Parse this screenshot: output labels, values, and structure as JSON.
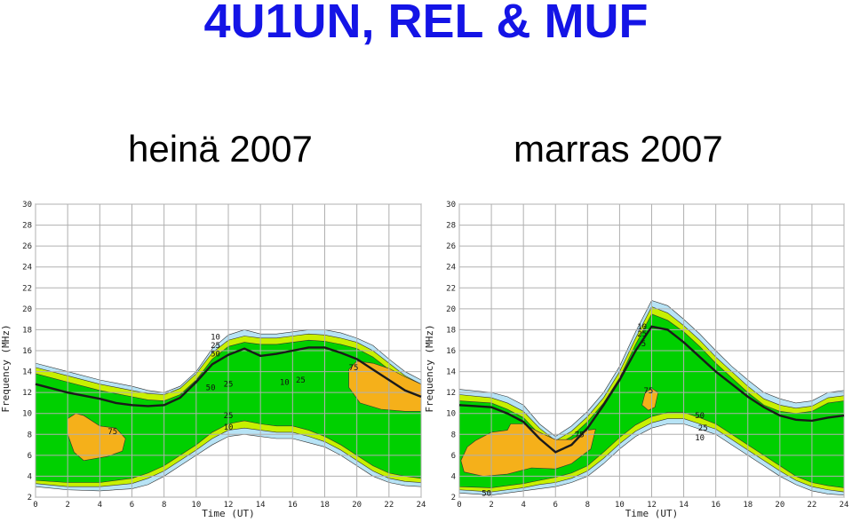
{
  "title": "4U1UN, REL & MUF",
  "subtitles": [
    "heinä 2007",
    "marras 2007"
  ],
  "colors": {
    "band_10": "#b7e3f5",
    "band_25": "#c8f000",
    "band_50": "#00d000",
    "band_75": "#f5b01a",
    "muf_line": "#1a1a1a",
    "grid": "#b0b0b0"
  },
  "chart_data": [
    {
      "type": "area",
      "title": "heinä 2007",
      "xlabel": "Time (UT)",
      "ylabel": "Frequency (MHz)",
      "xlim": [
        0,
        24
      ],
      "ylim": [
        2,
        30
      ],
      "x_ticks": [
        0,
        2,
        4,
        6,
        8,
        10,
        12,
        14,
        16,
        18,
        20,
        22,
        24
      ],
      "y_ticks": [
        2,
        4,
        6,
        8,
        10,
        12,
        14,
        16,
        18,
        20,
        22,
        24,
        26,
        28,
        30
      ],
      "grid": true,
      "contour_levels": [
        10,
        25,
        50,
        75
      ],
      "contour_labels": [
        {
          "text": "10",
          "x": 11.2,
          "y": 17.3
        },
        {
          "text": "25",
          "x": 11.2,
          "y": 16.5
        },
        {
          "text": "50",
          "x": 11.2,
          "y": 15.7
        },
        {
          "text": "50",
          "x": 10.9,
          "y": 12.5
        },
        {
          "text": "25",
          "x": 12.0,
          "y": 12.8
        },
        {
          "text": "10",
          "x": 15.5,
          "y": 13.0
        },
        {
          "text": "25",
          "x": 16.5,
          "y": 13.2
        },
        {
          "text": "75",
          "x": 19.8,
          "y": 14.4
        },
        {
          "text": "25",
          "x": 12.0,
          "y": 9.8
        },
        {
          "text": "10",
          "x": 12.0,
          "y": 8.7
        },
        {
          "text": "75",
          "x": 4.8,
          "y": 8.3
        }
      ],
      "series": [
        {
          "name": "10",
          "x": [
            0,
            2,
            4,
            6,
            7,
            8,
            9,
            10,
            11,
            12,
            13,
            14,
            15,
            16,
            17,
            18,
            19,
            20,
            21,
            22,
            23,
            24
          ],
          "upper": [
            14.8,
            14.0,
            13.2,
            12.6,
            12.2,
            12.0,
            12.6,
            14.0,
            16.2,
            17.5,
            18.0,
            17.6,
            17.6,
            17.8,
            18.0,
            18.0,
            17.7,
            17.2,
            16.5,
            15.2,
            14.0,
            13.2
          ],
          "lower": [
            3.0,
            2.7,
            2.6,
            2.8,
            3.2,
            4.0,
            5.0,
            6.0,
            7.0,
            7.8,
            8.0,
            7.8,
            7.6,
            7.6,
            7.2,
            6.8,
            6.0,
            5.0,
            4.0,
            3.4,
            3.1,
            3.0
          ]
        },
        {
          "name": "25",
          "x": [
            0,
            2,
            4,
            6,
            7,
            8,
            9,
            10,
            11,
            12,
            13,
            14,
            15,
            16,
            17,
            18,
            19,
            20,
            21,
            22,
            23,
            24
          ],
          "upper": [
            14.4,
            13.6,
            12.8,
            12.2,
            11.9,
            11.8,
            12.4,
            13.8,
            15.8,
            17.0,
            17.4,
            17.2,
            17.2,
            17.4,
            17.6,
            17.5,
            17.2,
            16.8,
            16.0,
            14.8,
            13.6,
            12.8
          ],
          "lower": [
            3.3,
            3.0,
            3.0,
            3.3,
            3.8,
            4.5,
            5.5,
            6.5,
            7.6,
            8.4,
            8.6,
            8.4,
            8.2,
            8.2,
            7.8,
            7.3,
            6.5,
            5.5,
            4.5,
            3.8,
            3.5,
            3.4
          ]
        },
        {
          "name": "50",
          "x": [
            0,
            2,
            4,
            6,
            7,
            8,
            9,
            10,
            11,
            12,
            13,
            14,
            15,
            16,
            17,
            18,
            19,
            20,
            21,
            22,
            23,
            24
          ],
          "upper": [
            13.8,
            13.0,
            12.2,
            11.6,
            11.3,
            11.2,
            11.8,
            13.2,
            15.2,
            16.4,
            16.8,
            16.6,
            16.6,
            16.8,
            17.0,
            16.9,
            16.6,
            16.2,
            15.4,
            14.2,
            13.0,
            12.2
          ],
          "lower": [
            3.6,
            3.4,
            3.4,
            3.8,
            4.3,
            5.0,
            6.0,
            7.0,
            8.2,
            9.0,
            9.3,
            9.0,
            8.8,
            8.8,
            8.4,
            7.8,
            7.0,
            6.0,
            5.0,
            4.3,
            4.0,
            3.8
          ]
        },
        {
          "name": "75",
          "x": [
            2.0,
            2.5,
            3.0,
            4.0,
            5.0,
            5.6,
            5.4,
            4.5,
            3.0,
            2.4,
            2.0
          ],
          "y": [
            9.5,
            10.0,
            9.8,
            8.8,
            8.6,
            7.6,
            6.4,
            5.9,
            5.5,
            6.3,
            8.0
          ]
        },
        {
          "name": "75",
          "x": [
            19.5,
            20.0,
            21.0,
            22.0,
            23.0,
            24.0,
            24.0,
            23.0,
            21.5,
            20.2,
            19.5
          ],
          "y": [
            14.2,
            15.0,
            14.8,
            14.3,
            13.5,
            12.8,
            10.2,
            10.2,
            10.4,
            11.0,
            12.5
          ]
        },
        {
          "name": "MUF",
          "x": [
            0,
            1,
            2,
            3,
            4,
            5,
            6,
            7,
            8,
            9,
            10,
            11,
            12,
            13,
            14,
            15,
            16,
            17,
            18,
            19,
            20,
            21,
            22,
            23,
            24
          ],
          "y": [
            12.8,
            12.4,
            12.0,
            11.7,
            11.4,
            11.0,
            10.8,
            10.7,
            10.8,
            11.5,
            13.0,
            14.7,
            15.6,
            16.2,
            15.5,
            15.7,
            16.0,
            16.3,
            16.3,
            15.8,
            15.2,
            14.2,
            13.2,
            12.2,
            11.6
          ]
        }
      ]
    },
    {
      "type": "area",
      "title": "marras 2007",
      "xlabel": "Time (UT)",
      "ylabel": "Frequency (MHz)",
      "xlim": [
        0,
        24
      ],
      "ylim": [
        2,
        30
      ],
      "x_ticks": [
        0,
        2,
        4,
        6,
        8,
        10,
        12,
        14,
        16,
        18,
        20,
        22,
        24
      ],
      "y_ticks": [
        2,
        4,
        6,
        8,
        10,
        12,
        14,
        16,
        18,
        20,
        22,
        24,
        26,
        28,
        30
      ],
      "grid": true,
      "contour_levels": [
        10,
        25,
        50,
        75
      ],
      "contour_labels": [
        {
          "text": "10",
          "x": 11.4,
          "y": 18.3
        },
        {
          "text": "25",
          "x": 11.4,
          "y": 17.6
        },
        {
          "text": "5",
          "x": 11.5,
          "y": 16.7
        },
        {
          "text": "75",
          "x": 11.8,
          "y": 12.2
        },
        {
          "text": "50",
          "x": 15.0,
          "y": 9.8
        },
        {
          "text": "25",
          "x": 15.2,
          "y": 8.6
        },
        {
          "text": "10",
          "x": 15.0,
          "y": 7.7
        },
        {
          "text": "50",
          "x": 1.7,
          "y": 2.4
        },
        {
          "text": "75",
          "x": 7.5,
          "y": 8.0
        }
      ],
      "series": [
        {
          "name": "10",
          "x": [
            0,
            2,
            3,
            4,
            5,
            6,
            7,
            8,
            9,
            10,
            11,
            12,
            13,
            14,
            15,
            16,
            17,
            18,
            19,
            20,
            21,
            22,
            23,
            24
          ],
          "upper": [
            12.3,
            12.0,
            11.6,
            10.8,
            9.0,
            7.8,
            8.8,
            10.2,
            12.0,
            14.5,
            17.8,
            20.8,
            20.3,
            19.0,
            17.6,
            16.0,
            14.5,
            13.2,
            12.0,
            11.4,
            11.0,
            11.2,
            12.0,
            12.2
          ],
          "lower": [
            2.4,
            2.2,
            2.4,
            2.6,
            2.8,
            3.0,
            3.4,
            4.0,
            5.2,
            6.6,
            7.8,
            8.6,
            9.0,
            9.0,
            8.5,
            8.0,
            7.0,
            6.0,
            5.0,
            4.0,
            3.2,
            2.6,
            2.3,
            2.2
          ]
        },
        {
          "name": "25",
          "x": [
            0,
            2,
            3,
            4,
            5,
            6,
            7,
            8,
            9,
            10,
            11,
            12,
            13,
            14,
            15,
            16,
            17,
            18,
            19,
            20,
            21,
            22,
            23,
            24
          ],
          "upper": [
            11.8,
            11.5,
            11.0,
            10.2,
            8.6,
            7.4,
            8.3,
            9.7,
            11.5,
            14.0,
            17.2,
            20.2,
            19.6,
            18.4,
            17.0,
            15.4,
            14.0,
            12.6,
            11.4,
            10.8,
            10.5,
            10.7,
            11.5,
            11.7
          ],
          "lower": [
            2.7,
            2.5,
            2.7,
            2.9,
            3.2,
            3.4,
            3.8,
            4.5,
            5.7,
            7.1,
            8.3,
            9.1,
            9.5,
            9.5,
            9.0,
            8.5,
            7.5,
            6.5,
            5.5,
            4.5,
            3.6,
            3.0,
            2.7,
            2.5
          ]
        },
        {
          "name": "50",
          "x": [
            0,
            2,
            3,
            4,
            5,
            6,
            7,
            8,
            9,
            10,
            11,
            12,
            13,
            14,
            15,
            16,
            17,
            18,
            19,
            20,
            21,
            22,
            23,
            24
          ],
          "upper": [
            11.2,
            11.0,
            10.4,
            9.6,
            8.0,
            6.9,
            7.8,
            9.2,
            11.0,
            13.4,
            16.6,
            19.5,
            18.9,
            17.8,
            16.4,
            14.8,
            13.4,
            12.0,
            10.8,
            10.2,
            10.0,
            10.2,
            11.0,
            11.2
          ],
          "lower": [
            3.0,
            2.9,
            3.1,
            3.3,
            3.6,
            3.9,
            4.3,
            5.0,
            6.3,
            7.7,
            8.9,
            9.7,
            10.1,
            10.1,
            9.6,
            9.0,
            8.0,
            7.0,
            6.0,
            5.0,
            4.0,
            3.4,
            3.1,
            2.9
          ]
        },
        {
          "name": "75",
          "x": [
            1.0,
            2.0,
            3.0,
            3.2,
            4.0,
            5.0,
            6.0,
            7.0,
            8.0,
            8.5,
            8.2,
            7.0,
            6.0,
            4.5,
            3.0,
            1.5,
            0.3,
            0.1,
            0.5
          ],
          "y": [
            7.4,
            8.2,
            8.4,
            9.0,
            9.0,
            8.2,
            7.5,
            7.5,
            8.4,
            8.5,
            6.6,
            5.2,
            4.7,
            4.8,
            4.2,
            4.0,
            4.4,
            5.5,
            6.8
          ]
        },
        {
          "name": "75",
          "x": [
            11.6,
            12.0,
            12.4,
            12.2,
            11.8,
            11.4
          ],
          "y": [
            12.0,
            12.4,
            12.0,
            10.6,
            10.3,
            10.8
          ]
        },
        {
          "name": "MUF",
          "x": [
            0,
            1,
            2,
            3,
            4,
            5,
            6,
            7,
            8,
            9,
            10,
            11,
            12,
            13,
            14,
            15,
            16,
            17,
            18,
            19,
            20,
            21,
            22,
            23,
            24
          ],
          "y": [
            10.8,
            10.7,
            10.6,
            10.0,
            9.2,
            7.6,
            6.3,
            7.0,
            8.6,
            10.8,
            13.2,
            16.0,
            18.3,
            18.0,
            16.8,
            15.4,
            14.0,
            12.8,
            11.6,
            10.6,
            9.8,
            9.4,
            9.3,
            9.6,
            9.8
          ]
        }
      ]
    }
  ]
}
